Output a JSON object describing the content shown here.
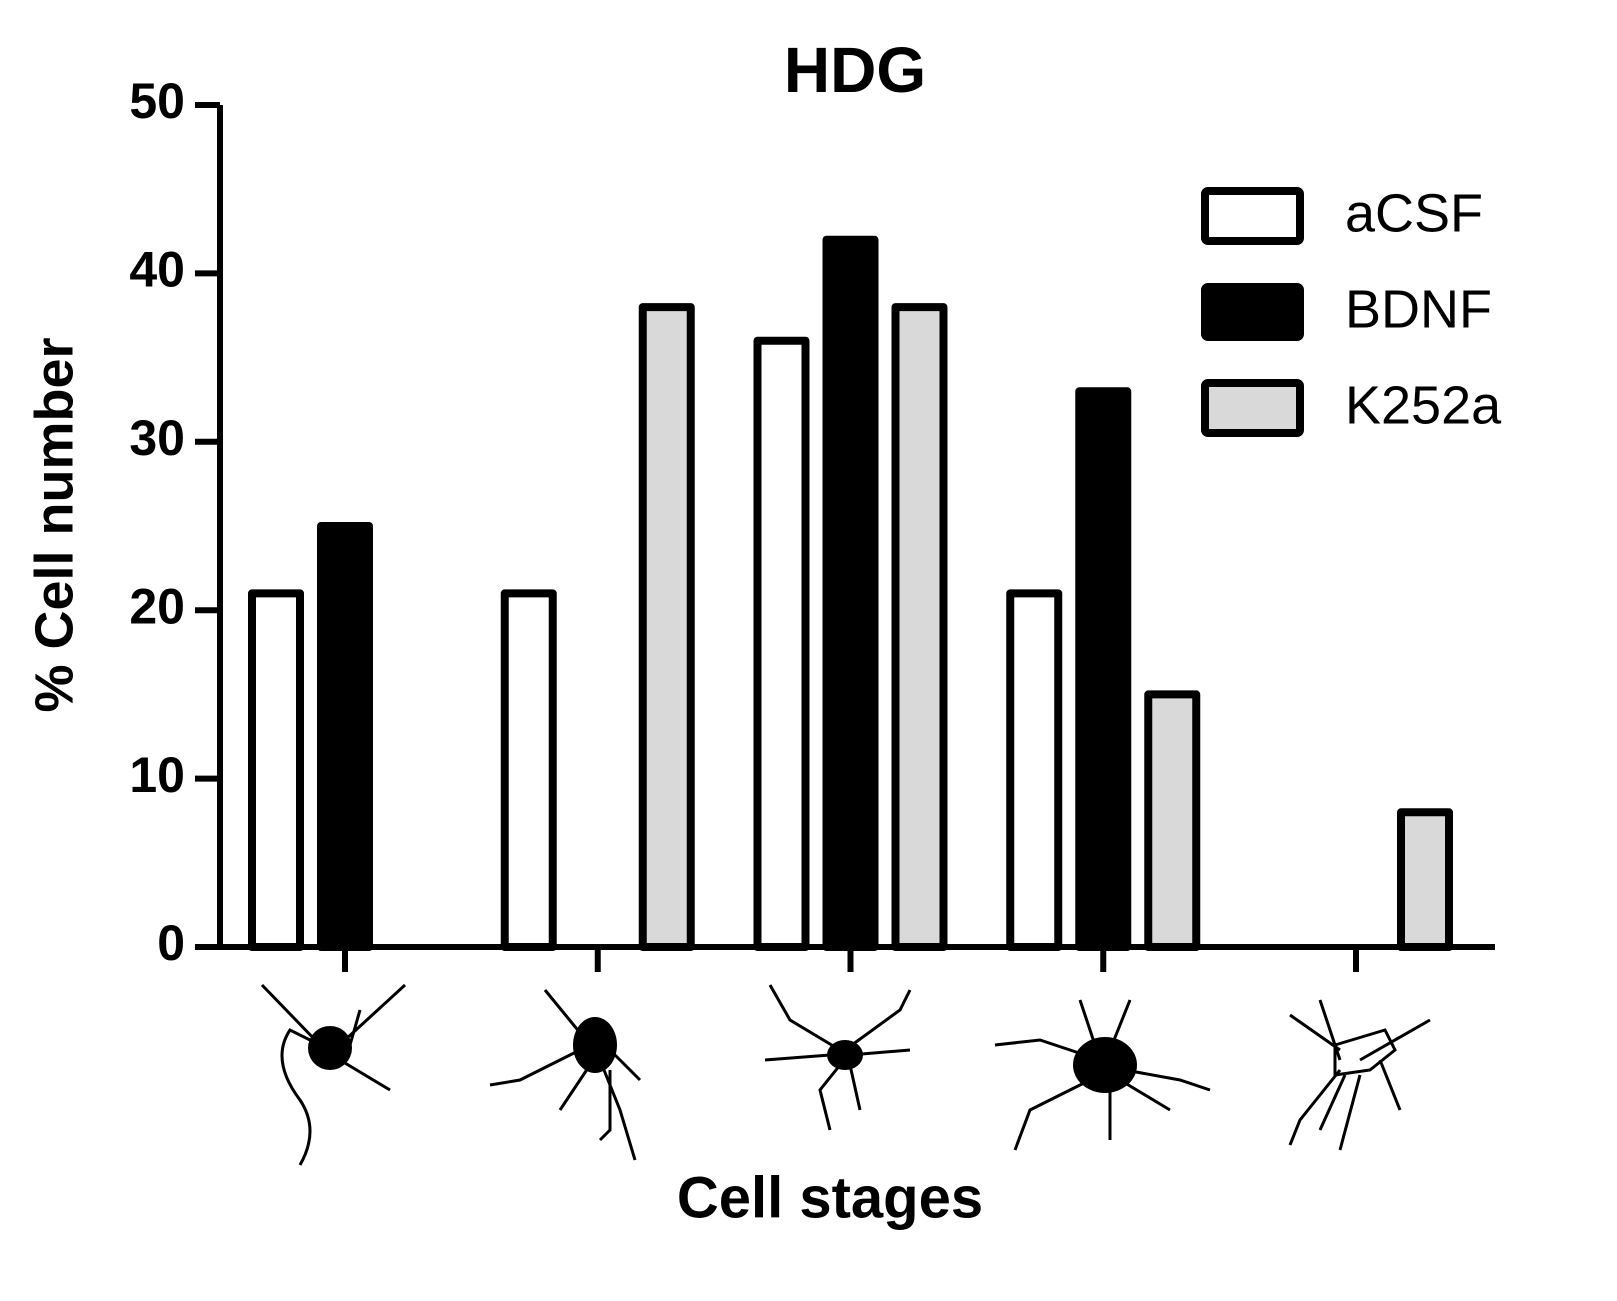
{
  "chart_data": {
    "type": "bar",
    "title": "HDG",
    "y_label": "% Cell number",
    "x_label": "Cell stages",
    "categories": [
      null,
      null,
      null,
      null,
      null
    ],
    "series": [
      {
        "name": "aCSF",
        "color": "#ffffff",
        "values": [
          21,
          21,
          36,
          21,
          0
        ]
      },
      {
        "name": "BDNF",
        "color": "#000000",
        "values": [
          25,
          0,
          42,
          33,
          0
        ]
      },
      {
        "name": "K252a",
        "color": "#d9d9d9",
        "values": [
          0,
          38,
          38,
          15,
          8
        ]
      }
    ],
    "ylim": [
      0,
      50
    ],
    "yticks": [
      0,
      10,
      20,
      30,
      40,
      50
    ],
    "grid": false,
    "legend": "upper right"
  }
}
